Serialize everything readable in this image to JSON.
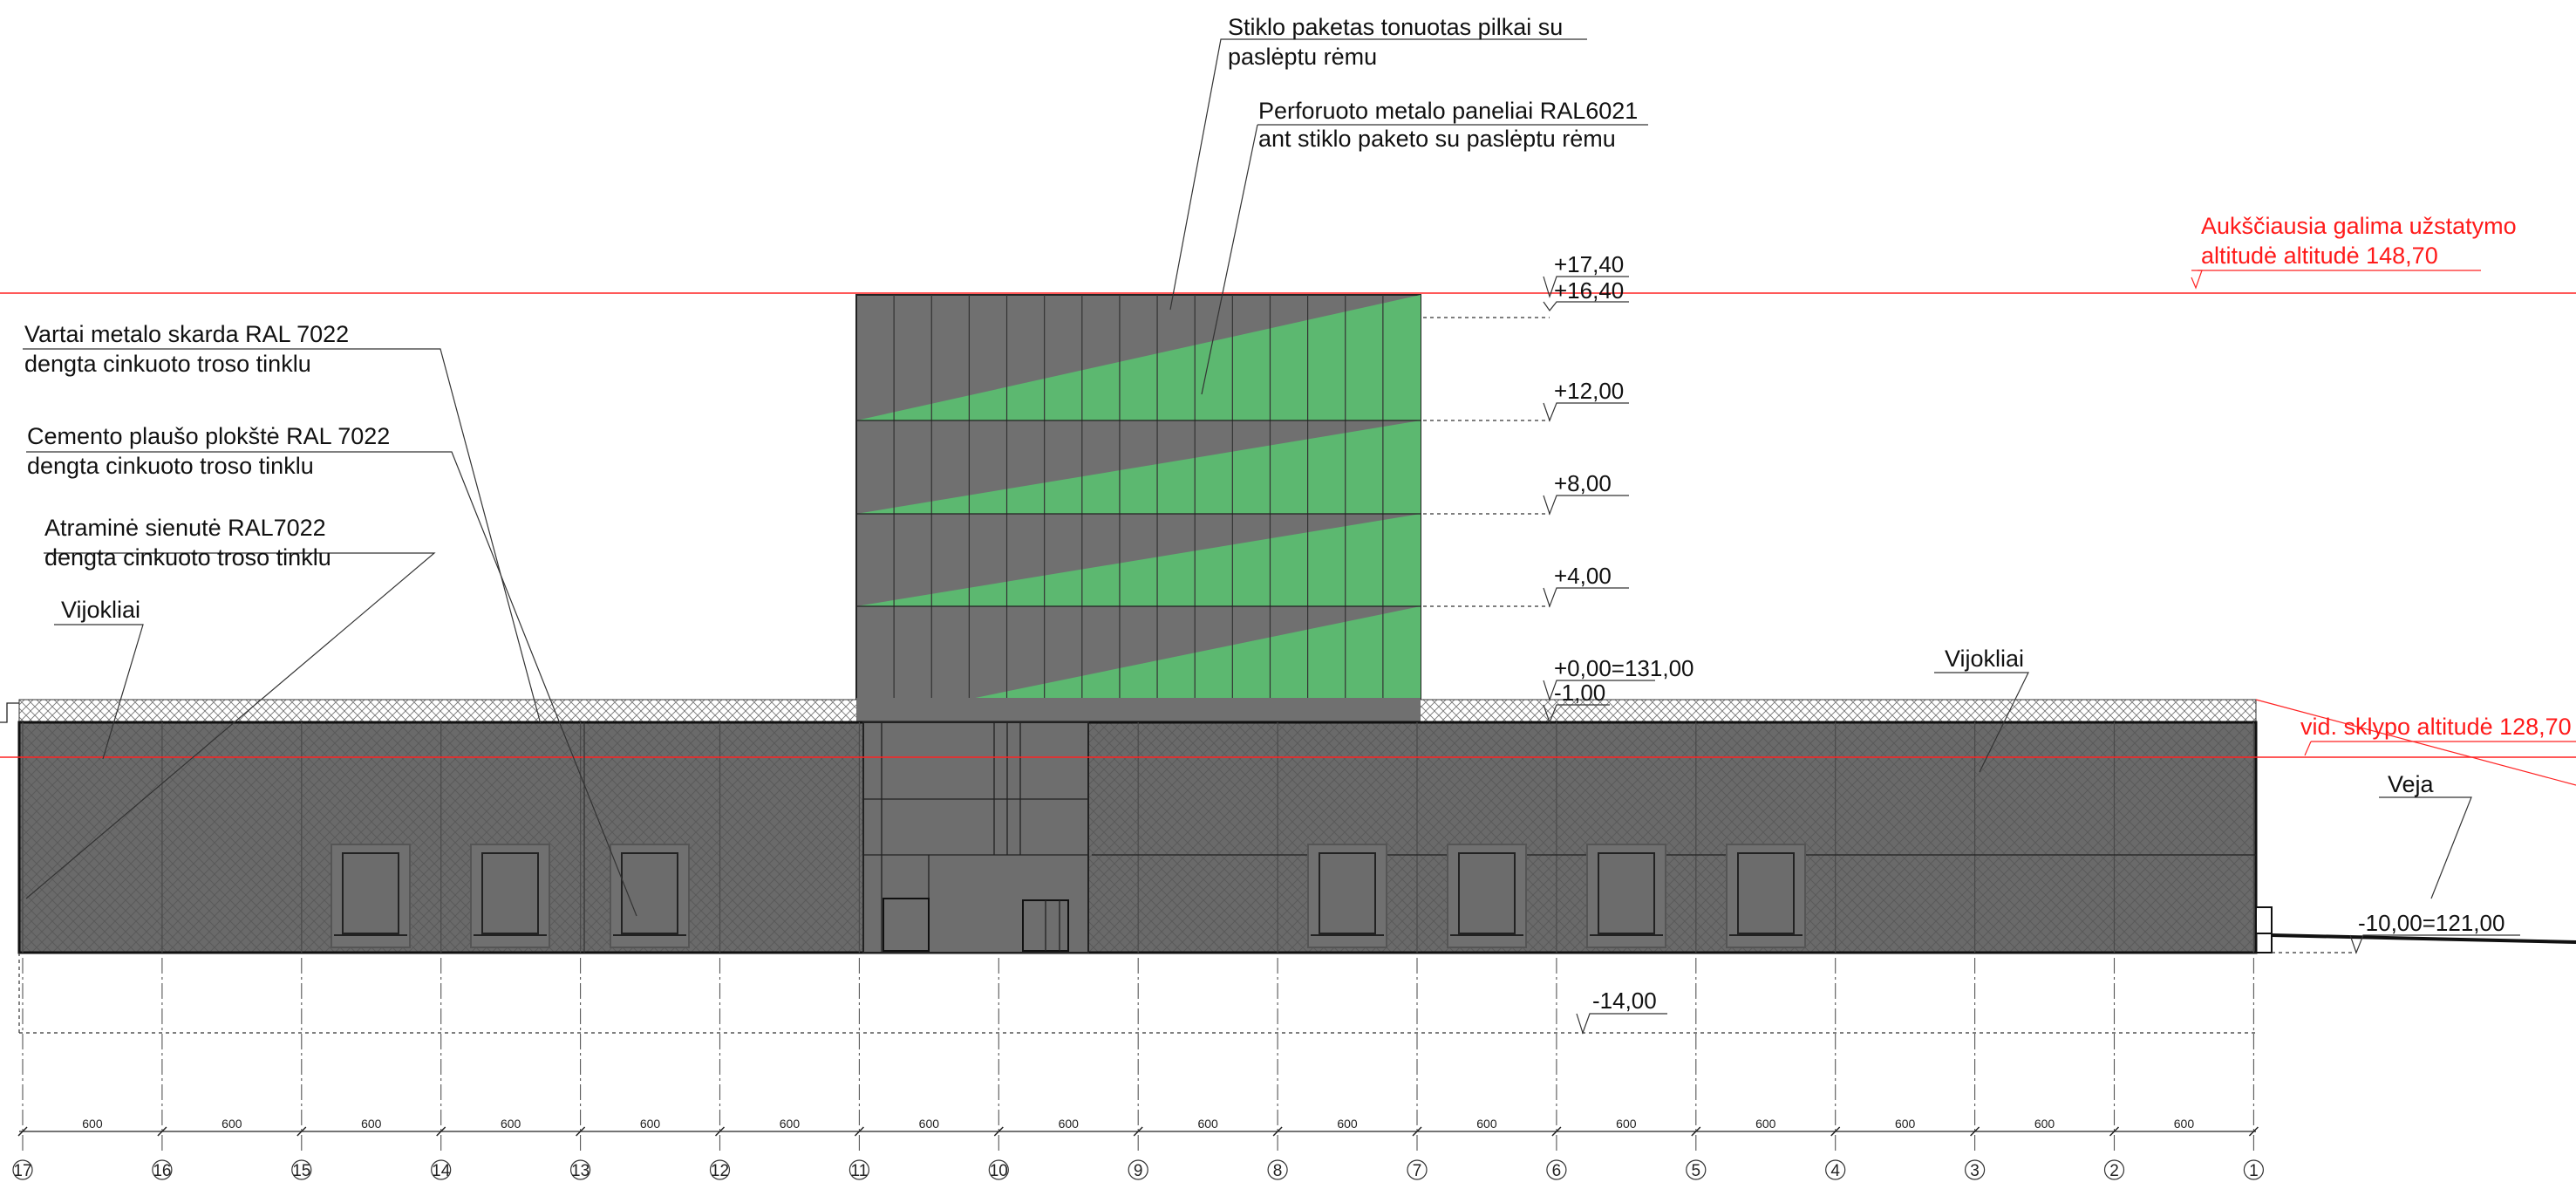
{
  "annotations": {
    "glass_unit": [
      "Stiklo paketas tonuotas pilkai su",
      "paslėptu rėmu"
    ],
    "perforated_panels": [
      "Perforuoto metalo paneliai RAL6021",
      "ant stiklo paketo su paslėptu rėmu"
    ],
    "gate": [
      "Vartai metalo skarda RAL 7022",
      "dengta cinkuoto troso tinklu"
    ],
    "cement_board": [
      "Cemento plaušo plokštė RAL 7022",
      "dengta cinkuoto troso tinklu"
    ],
    "retaining_wall": [
      "Atraminė sienutė  RAL7022",
      "dengta cinkuoto troso tinklu"
    ],
    "climbers_left": "Vijokliai",
    "climbers_right": "Vijokliai",
    "lawn": "Veja",
    "max_altitude": [
      "Aukščiausia galima užstatymo",
      "altitudė altitudė 148,70"
    ],
    "site_altitude": "vid.  sklypo altitudė 128,70"
  },
  "levels": {
    "l1740": "+17,40",
    "l1640": "+16,40",
    "l1200": "+12,00",
    "l800": "+8,00",
    "l400": "+4,00",
    "l000": "+0,00=131,00",
    "lm100": "-1,00",
    "lm1000": "-10,00=121,00",
    "lm1400": "-14,00"
  },
  "grid": {
    "axes": [
      "17",
      "16",
      "15",
      "14",
      "13",
      "12",
      "11",
      "10",
      "9",
      "8",
      "7",
      "6",
      "5",
      "4",
      "3",
      "2",
      "1"
    ],
    "spacing_label": "600"
  },
  "colors": {
    "facade_grey": "#707070",
    "panel_green": "#5cb870",
    "mesh_grey": "#6a6a6a",
    "red": "#ff2222"
  }
}
